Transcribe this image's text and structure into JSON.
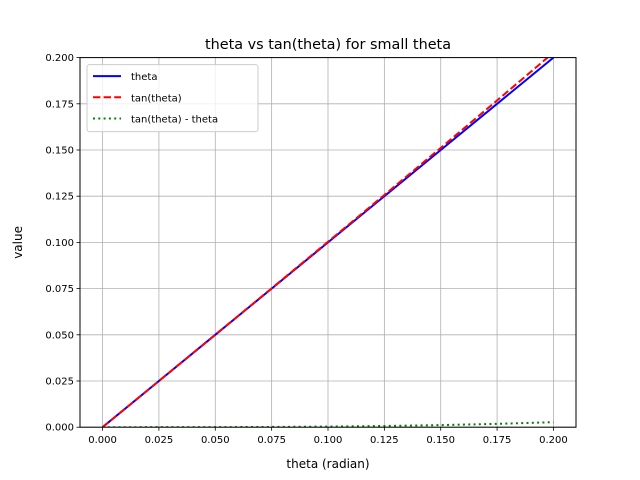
{
  "chart_data": {
    "type": "line",
    "title": "theta vs tan(theta) for small theta",
    "xlabel": "theta (radian)",
    "ylabel": "value",
    "xlim": [
      -0.01,
      0.21
    ],
    "ylim": [
      0.0,
      0.2
    ],
    "xticks": [
      0.0,
      0.025,
      0.05,
      0.075,
      0.1,
      0.125,
      0.15,
      0.175,
      0.2
    ],
    "xtick_labels": [
      "0.000",
      "0.025",
      "0.050",
      "0.075",
      "0.100",
      "0.125",
      "0.150",
      "0.175",
      "0.200"
    ],
    "yticks": [
      0.0,
      0.025,
      0.05,
      0.075,
      0.1,
      0.125,
      0.15,
      0.175,
      0.2
    ],
    "ytick_labels": [
      "0.000",
      "0.025",
      "0.050",
      "0.075",
      "0.100",
      "0.125",
      "0.150",
      "0.175",
      "0.200"
    ],
    "grid": true,
    "legend_position": "upper-left",
    "x": [
      0.0,
      0.025,
      0.05,
      0.075,
      0.1,
      0.125,
      0.15,
      0.175,
      0.2
    ],
    "series": [
      {
        "name": "theta",
        "color": "#0000ff",
        "style": "solid",
        "values": [
          0.0,
          0.025,
          0.05,
          0.075,
          0.1,
          0.125,
          0.15,
          0.175,
          0.2
        ]
      },
      {
        "name": "tan(theta)",
        "color": "#ff0000",
        "style": "dashed",
        "values": [
          0.0,
          0.02501,
          0.05004,
          0.07514,
          0.10033,
          0.12566,
          0.15114,
          0.17682,
          0.20271
        ]
      },
      {
        "name": "tan(theta) - theta",
        "color": "#008000",
        "style": "dotted",
        "values": [
          0.0,
          1e-05,
          4e-05,
          0.00014,
          0.00033,
          0.00066,
          0.00114,
          0.00182,
          0.00271
        ]
      }
    ]
  }
}
